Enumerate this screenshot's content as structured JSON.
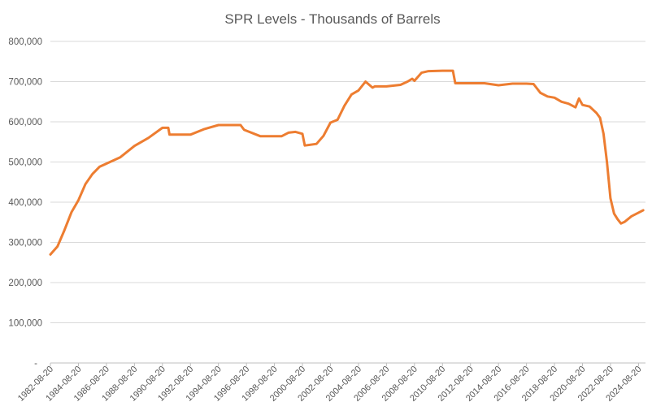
{
  "chart_data": {
    "type": "line",
    "title": "SPR Levels - Thousands of Barrels",
    "xlabel": "",
    "ylabel": "",
    "ylim": [
      0,
      800000
    ],
    "yticks": [
      "-",
      "100,000",
      "200,000",
      "300,000",
      "400,000",
      "500,000",
      "600,000",
      "700,000",
      "800,000"
    ],
    "xticks": [
      "1982-08-20",
      "1984-08-20",
      "1986-08-20",
      "1988-08-20",
      "1990-08-20",
      "1992-08-20",
      "1994-08-20",
      "1996-08-20",
      "1998-08-20",
      "2000-08-20",
      "2002-08-20",
      "2004-08-20",
      "2006-08-20",
      "2008-08-20",
      "2010-08-20",
      "2012-08-20",
      "2014-08-20",
      "2016-08-20",
      "2018-08-20",
      "2020-08-20",
      "2022-08-20",
      "2024-08-20"
    ],
    "grid": true,
    "line_color": "#ED7D31",
    "series": [
      {
        "x": [
          "1982-08-20",
          "1983-02-20",
          "1983-08-20",
          "1984-02-20",
          "1984-08-20",
          "1985-02-20",
          "1985-08-20",
          "1986-02-20",
          "1986-08-20",
          "1987-08-20",
          "1988-08-20",
          "1989-08-20",
          "1990-08-20",
          "1991-01-20",
          "1991-02-20",
          "1992-08-20",
          "1993-08-20",
          "1994-08-20",
          "1995-08-20",
          "1996-03-20",
          "1996-06-20",
          "1997-08-20",
          "1998-08-20",
          "1999-02-20",
          "1999-08-20",
          "2000-02-20",
          "2000-08-20",
          "2000-10-20",
          "2001-08-20",
          "2002-02-20",
          "2002-08-20",
          "2003-02-20",
          "2003-08-20",
          "2004-02-20",
          "2004-08-20",
          "2005-02-20",
          "2005-08-20",
          "2005-10-20",
          "2006-08-20",
          "2007-08-20",
          "2008-02-20",
          "2008-06-20",
          "2008-08-20",
          "2009-02-20",
          "2009-08-20",
          "2010-08-20",
          "2011-05-20",
          "2011-07-20",
          "2012-08-20",
          "2013-08-20",
          "2014-08-20",
          "2015-08-20",
          "2016-08-20",
          "2017-02-20",
          "2017-08-20",
          "2018-02-20",
          "2018-08-20",
          "2019-02-20",
          "2019-08-20",
          "2020-02-20",
          "2020-05-20",
          "2020-08-20",
          "2021-02-20",
          "2021-08-20",
          "2021-11-20",
          "2022-02-20",
          "2022-05-20",
          "2022-08-20",
          "2022-11-20",
          "2023-02-20",
          "2023-05-20",
          "2023-08-20",
          "2024-02-20",
          "2024-08-20",
          "2024-12-20"
        ],
        "values": [
          270000,
          290000,
          330000,
          375000,
          405000,
          445000,
          470000,
          488000,
          496000,
          512000,
          540000,
          560000,
          585000,
          585000,
          568000,
          568000,
          582000,
          592000,
          592000,
          592000,
          580000,
          564000,
          564000,
          564000,
          573000,
          575000,
          570000,
          541000,
          545000,
          565000,
          598000,
          605000,
          640000,
          668000,
          678000,
          700000,
          685000,
          688000,
          688000,
          692000,
          700000,
          707000,
          702000,
          722000,
          726000,
          727000,
          727000,
          696000,
          696000,
          696000,
          691000,
          695000,
          695000,
          694000,
          672000,
          663000,
          660000,
          650000,
          645000,
          636000,
          658000,
          642000,
          638000,
          622000,
          610000,
          570000,
          500000,
          410000,
          372000,
          358000,
          347000,
          351000,
          365000,
          374000,
          380000
        ]
      }
    ]
  }
}
